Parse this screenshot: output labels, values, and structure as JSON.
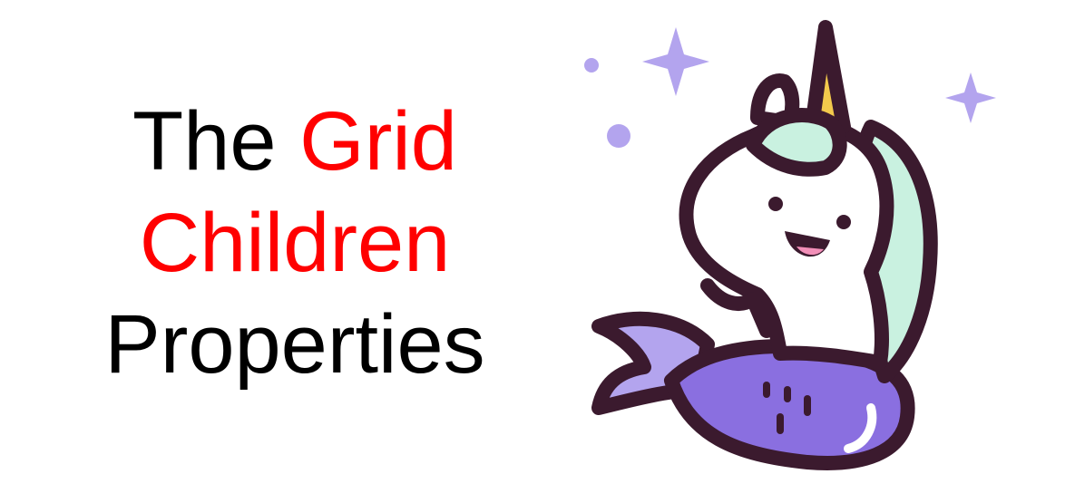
{
  "title": {
    "line1_prefix": "The ",
    "line1_highlight": "Grid",
    "line2_highlight": "Children",
    "line3": "Properties"
  },
  "colors": {
    "text": "#000000",
    "highlight": "#ff0000",
    "outline": "#3b1a2e",
    "sparkle": "#b3a4ee",
    "mane": "#c9f1e0",
    "tail": "#8a6fe0",
    "horn": "#f2c94c"
  },
  "illustration": {
    "icon": "unicorn-mermaid-icon"
  }
}
